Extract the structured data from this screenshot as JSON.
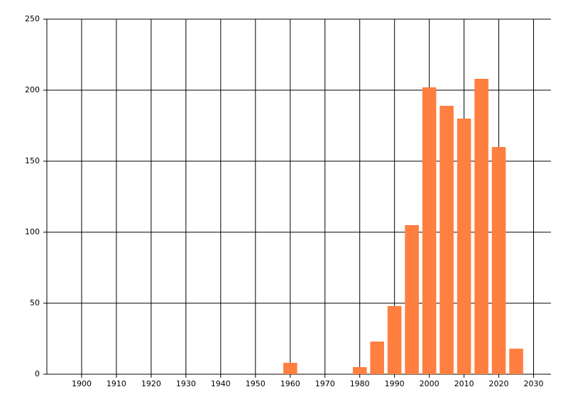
{
  "chart_data": {
    "type": "bar",
    "x": [
      1960,
      1980,
      1985,
      1990,
      1995,
      2000,
      2005,
      2010,
      2015,
      2020,
      2025
    ],
    "values": [
      8,
      5,
      23,
      48,
      105,
      202,
      189,
      180,
      208,
      160,
      18
    ],
    "color": "#ff7f40",
    "xlim": [
      1890,
      2035
    ],
    "xticks": [
      1900,
      1910,
      1920,
      1930,
      1940,
      1950,
      1960,
      1970,
      1980,
      1990,
      2000,
      2010,
      2020,
      2030
    ],
    "ylim": [
      0,
      250
    ],
    "yticks": [
      0,
      50,
      100,
      150,
      200,
      250
    ],
    "grid": true
  }
}
